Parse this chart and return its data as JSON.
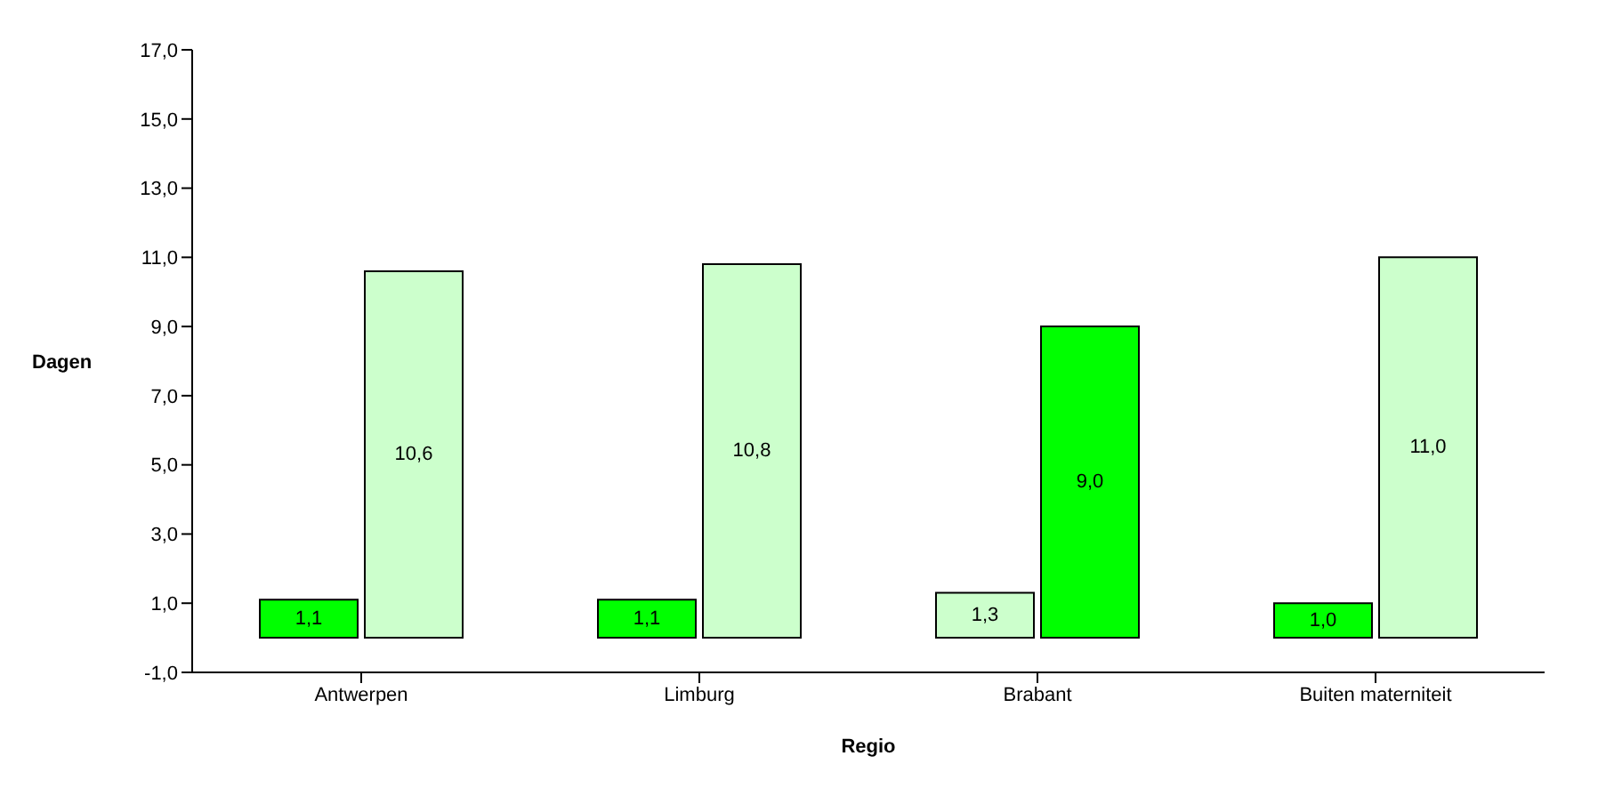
{
  "chart_data": {
    "type": "bar",
    "xlabel": "Regio",
    "ylabel": "Dagen",
    "categories": [
      "Antwerpen",
      "Limburg",
      "Brabant",
      "Buiten materniteit"
    ],
    "series": [
      {
        "colors": [
          "#00ff00",
          "#00ff00",
          "#ccffcc",
          "#00ff00"
        ],
        "values": [
          1.1,
          1.1,
          1.3,
          1.0
        ],
        "value_labels": [
          "1,1",
          "1,1",
          "1,3",
          "1,0"
        ]
      },
      {
        "colors": [
          "#ccffcc",
          "#ccffcc",
          "#00ff00",
          "#ccffcc"
        ],
        "values": [
          10.6,
          10.8,
          9.0,
          11.0
        ],
        "value_labels": [
          "10,6",
          "10,8",
          "9,0",
          "11,0"
        ]
      }
    ],
    "ylim": [
      -1,
      17
    ],
    "yticks": [
      {
        "value": -1,
        "label": "-1,0"
      },
      {
        "value": 1,
        "label": "1,0"
      },
      {
        "value": 3,
        "label": "3,0"
      },
      {
        "value": 5,
        "label": "5,0"
      },
      {
        "value": 7,
        "label": "7,0"
      },
      {
        "value": 9,
        "label": "9,0"
      },
      {
        "value": 11,
        "label": "11,0"
      },
      {
        "value": 13,
        "label": "13,0"
      },
      {
        "value": 15,
        "label": "15,0"
      },
      {
        "value": 17,
        "label": "17,0"
      }
    ],
    "grid": false,
    "legend": false
  }
}
